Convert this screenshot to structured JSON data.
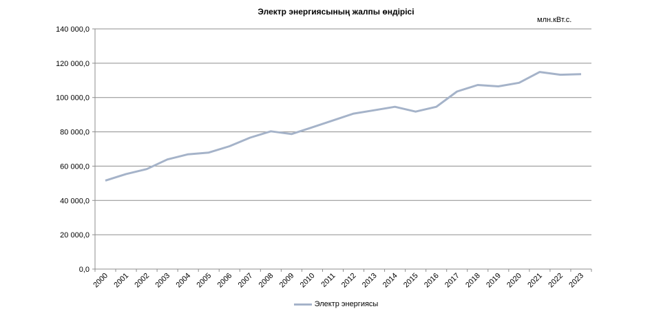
{
  "chart_data": {
    "type": "line",
    "title": "Электр энергиясының жалпы өндірісі",
    "unit": "млн.кВт.с.",
    "categories": [
      "2000",
      "2001",
      "2002",
      "2003",
      "2004",
      "2005",
      "2006",
      "2007",
      "2008",
      "2009",
      "2010",
      "2011",
      "2012",
      "2013",
      "2014",
      "2015",
      "2016",
      "2017",
      "2018",
      "2019",
      "2020",
      "2021",
      "2022",
      "2023"
    ],
    "series": [
      {
        "name": "Электр энергиясы",
        "color": "#a5b3c9",
        "values": [
          51600,
          55400,
          58300,
          63900,
          66900,
          67900,
          71600,
          76600,
          80300,
          78700,
          82600,
          86600,
          90600,
          92600,
          94600,
          91800,
          94600,
          103500,
          107300,
          106500,
          108600,
          114900,
          113300,
          113600
        ]
      }
    ],
    "y_ticks": [
      "0,0",
      "20 000,0",
      "40 000,0",
      "60 000,0",
      "80 000,0",
      "100 000,0",
      "120 000,0",
      "140 000,0"
    ],
    "ylim": [
      0,
      140000
    ],
    "grid": true,
    "legend_position": "bottom"
  }
}
